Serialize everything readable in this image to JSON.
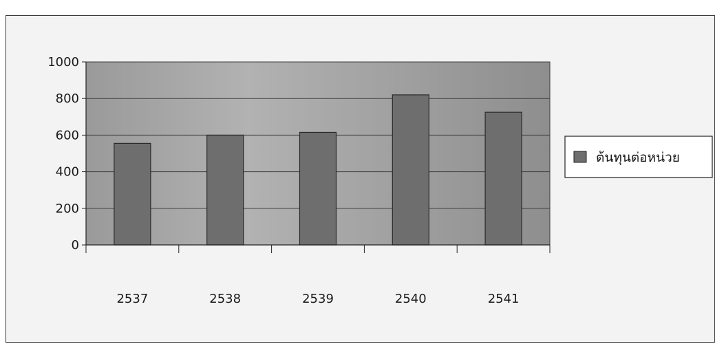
{
  "chart_data": {
    "type": "bar",
    "title": "",
    "xlabel": "",
    "ylabel": "",
    "categories": [
      "2537",
      "2538",
      "2539",
      "2540",
      "2541"
    ],
    "series": [
      {
        "name": "ต้นทุนต่อหน่วย",
        "values": [
          555,
          600,
          615,
          820,
          725
        ]
      }
    ],
    "ylim": [
      0,
      1000
    ],
    "yticks": [
      0,
      200,
      400,
      600,
      800,
      1000
    ],
    "grid": true,
    "legend_position": "right",
    "colors": {
      "plot_background": "#a4a4a4",
      "bar_fill": "#6e6e6e",
      "bar_stroke": "#2a2a2a",
      "gridline": "#3c3c3c",
      "axis": "#222222"
    }
  }
}
